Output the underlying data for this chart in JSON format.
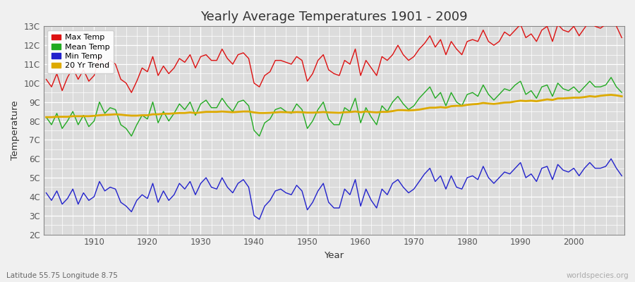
{
  "title": "Yearly Average Temperatures 1901 - 2009",
  "xlabel": "Year",
  "ylabel": "Temperature",
  "subtitle": "Latitude 55.75 Longitude 8.75",
  "watermark": "worldspecies.org",
  "years": [
    1901,
    1902,
    1903,
    1904,
    1905,
    1906,
    1907,
    1908,
    1909,
    1910,
    1911,
    1912,
    1913,
    1914,
    1915,
    1916,
    1917,
    1918,
    1919,
    1920,
    1921,
    1922,
    1923,
    1924,
    1925,
    1926,
    1927,
    1928,
    1929,
    1930,
    1931,
    1932,
    1933,
    1934,
    1935,
    1936,
    1937,
    1938,
    1939,
    1940,
    1941,
    1942,
    1943,
    1944,
    1945,
    1946,
    1947,
    1948,
    1949,
    1950,
    1951,
    1952,
    1953,
    1954,
    1955,
    1956,
    1957,
    1958,
    1959,
    1960,
    1961,
    1962,
    1963,
    1964,
    1965,
    1966,
    1967,
    1968,
    1969,
    1970,
    1971,
    1972,
    1973,
    1974,
    1975,
    1976,
    1977,
    1978,
    1979,
    1980,
    1981,
    1982,
    1983,
    1984,
    1985,
    1986,
    1987,
    1988,
    1989,
    1990,
    1991,
    1992,
    1993,
    1994,
    1995,
    1996,
    1997,
    1998,
    1999,
    2000,
    2001,
    2002,
    2003,
    2004,
    2005,
    2006,
    2007,
    2008,
    2009
  ],
  "max_temp": [
    10.2,
    9.8,
    10.5,
    9.6,
    10.3,
    10.8,
    10.2,
    10.7,
    10.1,
    10.4,
    11.4,
    10.8,
    11.2,
    11.0,
    10.2,
    10.0,
    9.5,
    10.1,
    10.8,
    10.6,
    11.4,
    10.4,
    10.9,
    10.5,
    10.8,
    11.3,
    11.1,
    11.5,
    10.8,
    11.4,
    11.5,
    11.2,
    11.2,
    11.8,
    11.3,
    11.0,
    11.5,
    11.6,
    11.3,
    10.0,
    9.8,
    10.4,
    10.6,
    11.2,
    11.2,
    11.1,
    11.0,
    11.4,
    11.2,
    10.1,
    10.5,
    11.2,
    11.5,
    10.7,
    10.5,
    10.4,
    11.2,
    11.0,
    11.8,
    10.4,
    11.2,
    10.8,
    10.4,
    11.4,
    11.2,
    11.5,
    12.0,
    11.5,
    11.2,
    11.4,
    11.8,
    12.1,
    12.5,
    11.9,
    12.3,
    11.5,
    12.2,
    11.8,
    11.5,
    12.2,
    12.3,
    12.2,
    12.8,
    12.2,
    12.0,
    12.2,
    12.7,
    12.5,
    12.8,
    13.1,
    12.4,
    12.6,
    12.2,
    12.8,
    13.0,
    12.2,
    13.1,
    12.8,
    12.7,
    13.0,
    12.5,
    12.9,
    13.3,
    13.0,
    12.9,
    13.1,
    13.6,
    13.0,
    12.4
  ],
  "mean_temp": [
    8.2,
    7.8,
    8.4,
    7.6,
    8.0,
    8.5,
    7.8,
    8.3,
    7.7,
    8.0,
    9.0,
    8.4,
    8.7,
    8.6,
    7.8,
    7.6,
    7.2,
    7.8,
    8.3,
    8.1,
    9.0,
    7.9,
    8.5,
    8.0,
    8.4,
    8.9,
    8.6,
    9.0,
    8.3,
    8.9,
    9.1,
    8.7,
    8.7,
    9.2,
    8.8,
    8.5,
    9.0,
    9.1,
    8.8,
    7.5,
    7.2,
    7.9,
    8.1,
    8.6,
    8.7,
    8.5,
    8.4,
    8.9,
    8.6,
    7.6,
    8.0,
    8.6,
    9.0,
    8.1,
    7.8,
    7.8,
    8.7,
    8.5,
    9.2,
    7.9,
    8.7,
    8.2,
    7.8,
    8.8,
    8.5,
    9.0,
    9.3,
    8.9,
    8.6,
    8.8,
    9.2,
    9.5,
    9.8,
    9.2,
    9.5,
    8.8,
    9.5,
    9.0,
    8.8,
    9.4,
    9.5,
    9.3,
    9.9,
    9.4,
    9.1,
    9.4,
    9.7,
    9.6,
    9.9,
    10.1,
    9.4,
    9.6,
    9.2,
    9.8,
    9.9,
    9.3,
    10.0,
    9.7,
    9.6,
    9.8,
    9.5,
    9.8,
    10.1,
    9.8,
    9.8,
    9.9,
    10.3,
    9.8,
    9.5
  ],
  "min_temp": [
    4.2,
    3.8,
    4.3,
    3.6,
    3.9,
    4.4,
    3.6,
    4.2,
    3.8,
    4.0,
    4.8,
    4.3,
    4.5,
    4.4,
    3.7,
    3.5,
    3.2,
    3.8,
    4.1,
    3.9,
    4.7,
    3.7,
    4.3,
    3.8,
    4.1,
    4.7,
    4.4,
    4.8,
    4.1,
    4.7,
    5.0,
    4.5,
    4.4,
    5.0,
    4.5,
    4.2,
    4.7,
    4.9,
    4.5,
    3.0,
    2.8,
    3.5,
    3.8,
    4.3,
    4.4,
    4.2,
    4.1,
    4.6,
    4.3,
    3.3,
    3.7,
    4.3,
    4.7,
    3.7,
    3.4,
    3.4,
    4.4,
    4.1,
    4.9,
    3.5,
    4.4,
    3.8,
    3.4,
    4.4,
    4.1,
    4.7,
    4.9,
    4.5,
    4.2,
    4.4,
    4.8,
    5.2,
    5.5,
    4.8,
    5.1,
    4.4,
    5.1,
    4.5,
    4.4,
    5.0,
    5.1,
    4.9,
    5.6,
    5.0,
    4.7,
    5.0,
    5.3,
    5.2,
    5.5,
    5.8,
    5.0,
    5.2,
    4.8,
    5.5,
    5.6,
    4.9,
    5.7,
    5.4,
    5.3,
    5.5,
    5.1,
    5.5,
    5.8,
    5.5,
    5.5,
    5.6,
    6.0,
    5.5,
    5.1
  ],
  "trend_20yr": [
    8.2,
    8.2,
    8.22,
    8.22,
    8.22,
    8.25,
    8.25,
    8.25,
    8.25,
    8.27,
    8.3,
    8.32,
    8.33,
    8.35,
    8.33,
    8.3,
    8.28,
    8.28,
    8.3,
    8.3,
    8.35,
    8.35,
    8.38,
    8.38,
    8.4,
    8.42,
    8.42,
    8.45,
    8.42,
    8.45,
    8.48,
    8.48,
    8.48,
    8.5,
    8.48,
    8.46,
    8.48,
    8.5,
    8.5,
    8.45,
    8.42,
    8.42,
    8.43,
    8.45,
    8.47,
    8.46,
    8.45,
    8.47,
    8.46,
    8.44,
    8.44,
    8.45,
    8.47,
    8.45,
    8.44,
    8.43,
    8.46,
    8.47,
    8.5,
    8.46,
    8.5,
    8.47,
    8.45,
    8.48,
    8.48,
    8.52,
    8.57,
    8.57,
    8.55,
    8.57,
    8.6,
    8.65,
    8.7,
    8.7,
    8.73,
    8.7,
    8.78,
    8.8,
    8.8,
    8.85,
    8.88,
    8.9,
    8.95,
    8.92,
    8.9,
    8.93,
    8.97,
    8.98,
    9.03,
    9.07,
    9.05,
    9.07,
    9.04,
    9.09,
    9.14,
    9.11,
    9.19,
    9.19,
    9.21,
    9.23,
    9.23,
    9.26,
    9.31,
    9.28,
    9.33,
    9.36,
    9.38,
    9.35,
    9.3
  ],
  "ylim": [
    2,
    13
  ],
  "yticks": [
    2,
    3,
    4,
    5,
    6,
    7,
    8,
    9,
    10,
    11,
    12,
    13
  ],
  "ytick_labels": [
    "2C",
    "3C",
    "4C",
    "5C",
    "6C",
    "7C",
    "8C",
    "9C",
    "10C",
    "11C",
    "12C",
    "13C"
  ],
  "xticks": [
    1910,
    1920,
    1930,
    1940,
    1950,
    1960,
    1970,
    1980,
    1990,
    2000
  ],
  "colors": {
    "max_temp": "#dd1111",
    "mean_temp": "#22aa22",
    "min_temp": "#2222cc",
    "trend_20yr": "#ddaa00",
    "plot_bg": "#dcdcdc",
    "fig_bg": "#f0f0f0",
    "grid": "#ffffff",
    "text": "#333333",
    "axis_text": "#555555"
  },
  "legend": {
    "max_temp": "Max Temp",
    "mean_temp": "Mean Temp",
    "min_temp": "Min Temp",
    "trend_20yr": "20 Yr Trend"
  },
  "line_widths": {
    "data": 1.0,
    "trend": 2.0
  }
}
